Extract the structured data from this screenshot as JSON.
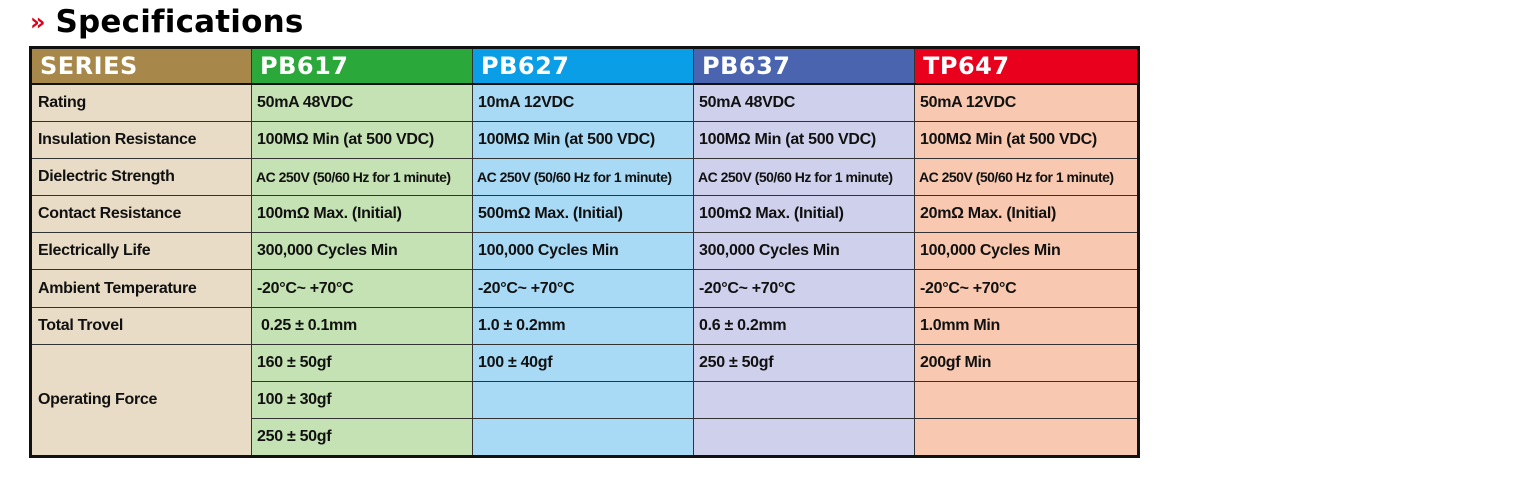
{
  "heading": {
    "chevron": "»",
    "title": "Specifications"
  },
  "colors": {
    "series_header": "#a8884a",
    "series_body": "#e8dcc6",
    "pb617_header": "#2aa83a",
    "pb617_body": "#c4e2b3",
    "pb627_header": "#0a9ee6",
    "pb627_body": "#a8daf6",
    "pb637_header": "#4a64b0",
    "pb637_body": "#cfd0ec",
    "tp647_header": "#e8001c",
    "tp647_body": "#f8c8b0",
    "accent": "#e00019"
  },
  "table": {
    "headers": [
      "SERIES",
      "PB617",
      "PB627",
      "PB637",
      "TP647"
    ],
    "rows": [
      {
        "label": "Rating",
        "values": [
          "50mA 48VDC",
          "10mA 12VDC",
          "50mA 48VDC",
          "50mA 12VDC"
        ]
      },
      {
        "label": "Insulation Resistance",
        "values": [
          "100MΩ Min (at 500 VDC)",
          "100MΩ Min (at 500 VDC)",
          "100MΩ Min (at 500 VDC)",
          "100MΩ Min (at 500 VDC)"
        ]
      },
      {
        "label": "Dielectric Strength",
        "values": [
          "AC 250V (50/60 Hz for 1 minute)",
          "AC 250V (50/60 Hz for 1 minute)",
          "AC 250V (50/60 Hz for 1 minute)",
          "AC 250V (50/60 Hz for 1 minute)"
        ]
      },
      {
        "label": "Contact Resistance",
        "values": [
          "100mΩ Max. (Initial)",
          "500mΩ Max. (Initial)",
          "100mΩ Max. (Initial)",
          "20mΩ Max. (Initial)"
        ]
      },
      {
        "label": "Electrically Life",
        "values": [
          "300,000 Cycles Min",
          "100,000 Cycles Min",
          "300,000 Cycles Min",
          "100,000 Cycles Min"
        ]
      },
      {
        "label": "Ambient Temperature",
        "values": [
          "-20°C~ +70°C",
          "-20°C~ +70°C",
          "-20°C~ +70°C",
          "-20°C~ +70°C"
        ]
      },
      {
        "label": "Total Trovel",
        "values": [
          "0.25 ± 0.1mm",
          "1.0 ± 0.2mm",
          "0.6 ± 0.2mm",
          "1.0mm Min"
        ]
      }
    ],
    "operating_force": {
      "label": "Operating Force",
      "pb617": [
        "160 ± 50gf",
        "100 ± 30gf",
        "250 ± 50gf"
      ],
      "pb627": [
        "100 ± 40gf",
        "",
        ""
      ],
      "pb637": [
        "250 ± 50gf",
        "",
        ""
      ],
      "tp647": [
        "200gf  Min",
        "",
        ""
      ]
    }
  }
}
